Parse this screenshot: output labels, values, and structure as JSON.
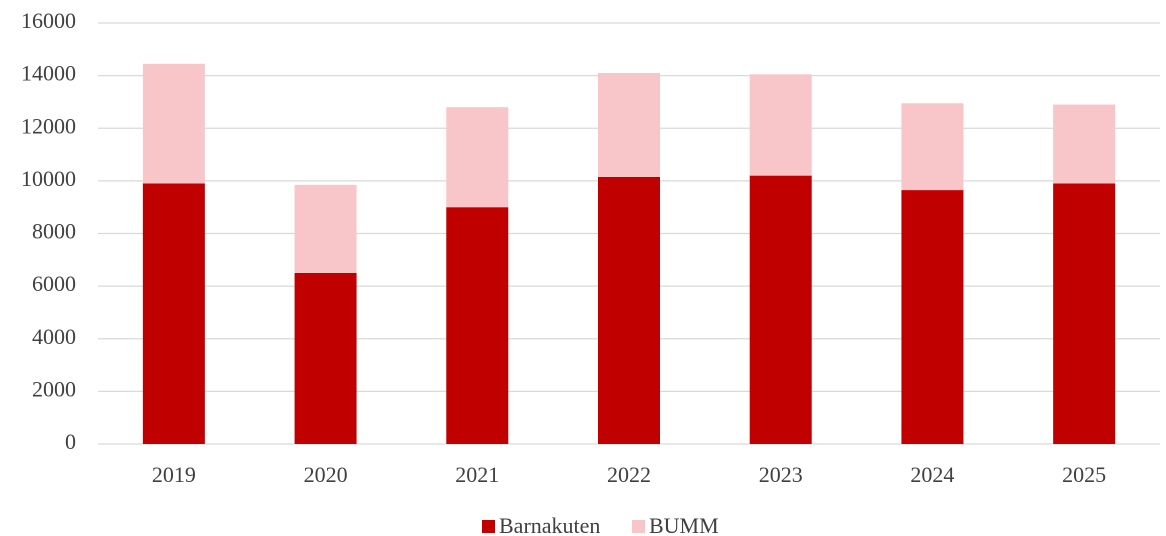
{
  "chart_data": {
    "type": "stacked_bar",
    "categories": [
      "2019",
      "2020",
      "2021",
      "2022",
      "2023",
      "2024",
      "2025"
    ],
    "series": [
      {
        "name": "Barnakuten",
        "color": "#c00000",
        "values": [
          9900,
          6500,
          9000,
          10150,
          10200,
          9650,
          9900
        ]
      },
      {
        "name": "BUMM",
        "color": "#f8c6c8",
        "values": [
          4550,
          3350,
          3800,
          3950,
          3850,
          3300,
          3000
        ]
      }
    ],
    "ylim": [
      0,
      16000
    ],
    "yticks": [
      0,
      2000,
      4000,
      6000,
      8000,
      10000,
      12000,
      14000,
      16000
    ],
    "grid": true,
    "legend": "bottom"
  }
}
